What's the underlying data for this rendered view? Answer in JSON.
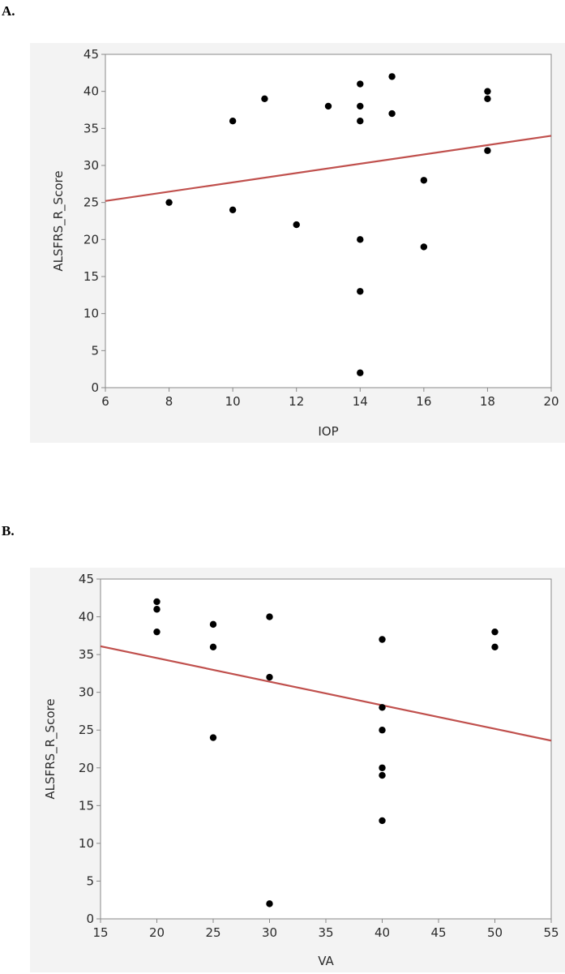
{
  "panels": {
    "a": {
      "label": "A."
    },
    "b": {
      "label": "B."
    }
  },
  "colors": {
    "background": "#f3f3f3",
    "plot_area": "#ffffff",
    "points": "#000000",
    "fit_line": "#c0504d",
    "axis": "#888888"
  },
  "chart_data": [
    {
      "type": "scatter",
      "panel": "A.",
      "xlabel": "IOP",
      "ylabel": "ALSFRS_R_Score",
      "xlim": [
        6,
        20
      ],
      "ylim": [
        0,
        45
      ],
      "xticks": [
        6,
        8,
        10,
        12,
        14,
        16,
        18,
        20
      ],
      "yticks": [
        0,
        5,
        10,
        15,
        20,
        25,
        30,
        35,
        40,
        45
      ],
      "grid": false,
      "points": [
        {
          "x": 8,
          "y": 25
        },
        {
          "x": 10,
          "y": 36
        },
        {
          "x": 10,
          "y": 24
        },
        {
          "x": 11,
          "y": 39
        },
        {
          "x": 12,
          "y": 22
        },
        {
          "x": 13,
          "y": 38
        },
        {
          "x": 14,
          "y": 41
        },
        {
          "x": 14,
          "y": 38
        },
        {
          "x": 14,
          "y": 36
        },
        {
          "x": 14,
          "y": 20
        },
        {
          "x": 14,
          "y": 13
        },
        {
          "x": 14,
          "y": 2
        },
        {
          "x": 15,
          "y": 42
        },
        {
          "x": 15,
          "y": 37
        },
        {
          "x": 16,
          "y": 28
        },
        {
          "x": 16,
          "y": 19
        },
        {
          "x": 18,
          "y": 40
        },
        {
          "x": 18,
          "y": 39
        },
        {
          "x": 18,
          "y": 32
        }
      ],
      "fit_line": [
        {
          "x": 6,
          "y": 25.2
        },
        {
          "x": 20,
          "y": 34
        }
      ]
    },
    {
      "type": "scatter",
      "panel": "B.",
      "xlabel": "VA",
      "ylabel": "ALSFRS_R_Score",
      "xlim": [
        15,
        55
      ],
      "ylim": [
        0,
        45
      ],
      "xticks": [
        15,
        20,
        25,
        30,
        35,
        40,
        45,
        50,
        55
      ],
      "yticks": [
        0,
        5,
        10,
        15,
        20,
        25,
        30,
        35,
        40,
        45
      ],
      "grid": false,
      "points": [
        {
          "x": 20,
          "y": 42
        },
        {
          "x": 20,
          "y": 41
        },
        {
          "x": 20,
          "y": 38
        },
        {
          "x": 25,
          "y": 39
        },
        {
          "x": 25,
          "y": 36
        },
        {
          "x": 25,
          "y": 24
        },
        {
          "x": 30,
          "y": 40
        },
        {
          "x": 30,
          "y": 32
        },
        {
          "x": 30,
          "y": 2
        },
        {
          "x": 40,
          "y": 37
        },
        {
          "x": 40,
          "y": 28
        },
        {
          "x": 40,
          "y": 25
        },
        {
          "x": 40,
          "y": 20
        },
        {
          "x": 40,
          "y": 19
        },
        {
          "x": 40,
          "y": 13
        },
        {
          "x": 50,
          "y": 38
        },
        {
          "x": 50,
          "y": 36
        }
      ],
      "fit_line": [
        {
          "x": 15,
          "y": 36.1
        },
        {
          "x": 55,
          "y": 23.6
        }
      ]
    }
  ]
}
